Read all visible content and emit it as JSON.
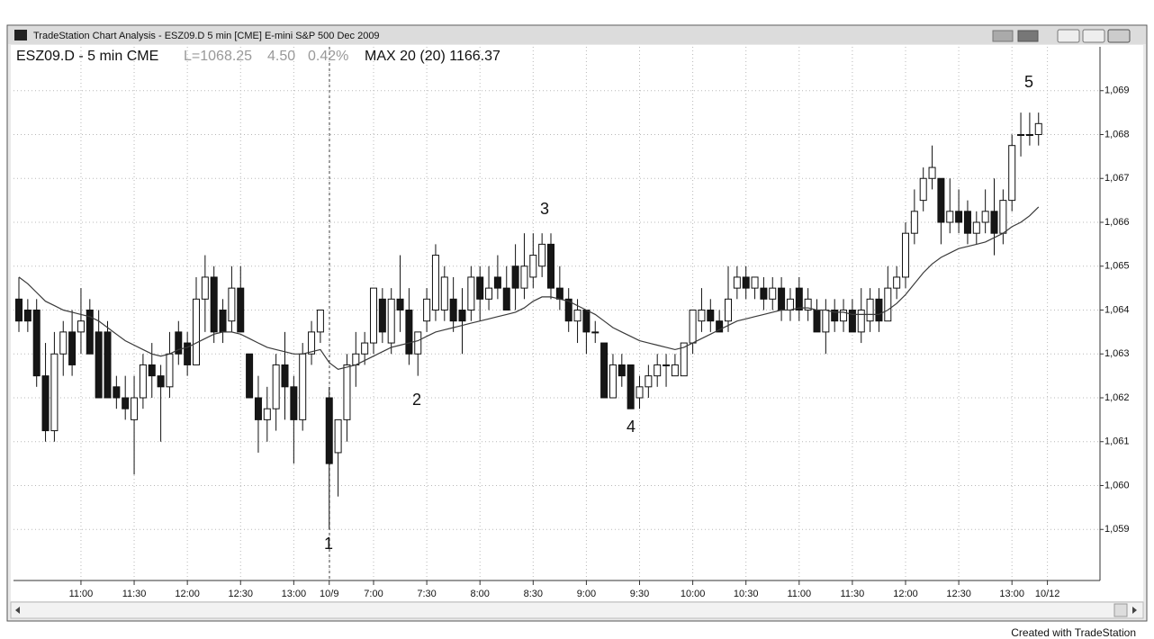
{
  "chart_data": {
    "type": "candlestick",
    "window_title": "TradeStation Chart Analysis - ESZ09.D 5 min [CME] E-mini S&P 500 Dec 2009",
    "symbol_label": "ESZ09.D - 5 min CME",
    "last_label": "L=1068.25",
    "change_label": "4.50",
    "pct_label": "0.42%",
    "indicator_label": "MAX 20 (20) 1166.37",
    "categories": [
      null,
      null,
      null,
      null,
      null,
      null,
      null,
      "11:00",
      null,
      null,
      null,
      null,
      null,
      "11:30",
      null,
      null,
      null,
      null,
      null,
      "12:00",
      null,
      null,
      null,
      null,
      null,
      "12:30",
      null,
      null,
      null,
      null,
      null,
      "13:00",
      null,
      null,
      null,
      "10/9",
      null,
      null,
      null,
      null,
      "7:00",
      null,
      null,
      null,
      null,
      null,
      "7:30",
      null,
      null,
      null,
      null,
      null,
      "8:00",
      null,
      null,
      null,
      null,
      null,
      "8:30",
      null,
      null,
      null,
      null,
      null,
      "9:00",
      null,
      null,
      null,
      null,
      null,
      "9:30",
      null,
      null,
      null,
      null,
      null,
      "10:00",
      null,
      null,
      null,
      null,
      null,
      "10:30",
      null,
      null,
      null,
      null,
      null,
      "11:00",
      null,
      null,
      null,
      null,
      null,
      "11:30",
      null,
      null,
      null,
      null,
      null,
      "12:00",
      null,
      null,
      null,
      null,
      null,
      "12:30",
      null,
      null,
      null,
      null,
      null,
      "13:00",
      null,
      null,
      null,
      "10/12"
    ],
    "open": [
      1064.25,
      1064,
      1064,
      1062.5,
      1061.25,
      1063,
      1063.5,
      1063.5,
      1064,
      1063.5,
      1063.5,
      1062.25,
      1062,
      1061.5,
      1062,
      1062.75,
      1062.5,
      1062.25,
      1063.5,
      1063.25,
      1062.75,
      1064.25,
      1064.75,
      1064,
      1063.75,
      1064.5,
      1063,
      1062,
      1061.5,
      1061.75,
      1062.75,
      1062.25,
      1061.5,
      1063,
      1063.5,
      1062,
      1060.75,
      1061.5,
      1062.75,
      1063,
      1063.25,
      1064.25,
      1063.25,
      1064.25,
      1064,
      1063,
      1063.75,
      1064,
      1064,
      1064.25,
      1064,
      1064,
      1064.75,
      1064.25,
      1064.75,
      1064.5,
      1065,
      1064.5,
      1064.75,
      1065,
      1065.5,
      1064.5,
      1064.25,
      1063.75,
      1064,
      1063.5,
      1063.25,
      1062,
      1062.75,
      1062.75,
      1062,
      1062.25,
      1062.5,
      1062.75,
      1062.5,
      1062.5,
      1063.25,
      1063.75,
      1064,
      1063.75,
      1063.75,
      1064.5,
      1064.75,
      1064.5,
      1064.5,
      1064.25,
      1064.5,
      1064,
      1064.5,
      1064,
      1064,
      1063.5,
      1064,
      1063.75,
      1064,
      1063.5,
      1063.75,
      1064.25,
      1063.75,
      1064.5,
      1064.75,
      1065.75,
      1066.5,
      1067,
      1067,
      1066,
      1066.25,
      1066.25,
      1065.75,
      1066,
      1066.25,
      1065.75,
      1066.5,
      1068,
      1068,
      1068,
      null
    ],
    "high": [
      1064.75,
      1064.25,
      1064.25,
      1063.25,
      1063.5,
      1063.75,
      1064,
      1064.5,
      1064.25,
      1064,
      1063.75,
      1062.5,
      1062.5,
      1062.5,
      1063,
      1063.25,
      1062.75,
      1063.5,
      1063.75,
      1063.5,
      1064.75,
      1065.25,
      1065,
      1064.25,
      1065,
      1065,
      1063,
      1062.5,
      1062.25,
      1063,
      1063.5,
      1062.5,
      1063.25,
      1063.75,
      1064,
      1062.25,
      1061.5,
      1063,
      1063.5,
      1063.5,
      1064.5,
      1064.5,
      1064.5,
      1065.25,
      1064.5,
      1063.5,
      1064.5,
      1065.5,
      1065,
      1064.75,
      1064.5,
      1065,
      1065,
      1065,
      1065.25,
      1065,
      1065.5,
      1065.75,
      1065.75,
      1065.75,
      1065.75,
      1065,
      1064.5,
      1064.25,
      1064,
      1063.75,
      1063.25,
      1063,
      1063,
      1062.75,
      1062.5,
      1062.75,
      1063,
      1063,
      1063,
      1063.25,
      1064,
      1064.5,
      1064.25,
      1064,
      1065,
      1065,
      1065,
      1064.75,
      1064.75,
      1064.75,
      1064.75,
      1064.5,
      1064.75,
      1064.5,
      1064.25,
      1064.25,
      1064.25,
      1064.25,
      1064.25,
      1064.5,
      1064.5,
      1064.5,
      1065,
      1065,
      1066,
      1066.75,
      1067.25,
      1067.75,
      1067,
      1067,
      1066.75,
      1066.5,
      1066.25,
      1066.75,
      1067,
      1066.75,
      1068,
      1068.5,
      1068.5,
      1068.5,
      null
    ],
    "low": [
      1063.5,
      1063.5,
      1062.25,
      1061,
      1061,
      1062.5,
      1062.5,
      1063,
      1063,
      1062,
      1062,
      1061.75,
      1061.5,
      1060.25,
      1061.75,
      1062,
      1061,
      1062,
      1062.75,
      1062.5,
      1062.75,
      1063.5,
      1063.25,
      1063.25,
      1063.5,
      1063.5,
      1062,
      1060.75,
      1061,
      1061.25,
      1061.5,
      1060.5,
      1061.25,
      1062.75,
      1063.25,
      1059,
      1059.75,
      1061,
      1062.25,
      1062.75,
      1063,
      1063.25,
      1063,
      1063.5,
      1062.75,
      1062.5,
      1063.5,
      1063.75,
      1063.75,
      1063.5,
      1063,
      1063.75,
      1063.75,
      1064,
      1064.25,
      1064,
      1064,
      1064.25,
      1064.5,
      1064.75,
      1064.25,
      1064,
      1063.5,
      1063.25,
      1063,
      1063.25,
      1062,
      1062,
      1062.25,
      1061.75,
      1061.75,
      1062,
      1062.25,
      1062.25,
      1062.5,
      1062.5,
      1063,
      1063.5,
      1063.5,
      1063.5,
      1063.5,
      1064.25,
      1064.25,
      1064.25,
      1064,
      1064,
      1063.75,
      1063.75,
      1063.75,
      1063.75,
      1063.5,
      1063,
      1063.5,
      1063.5,
      1063.5,
      1063.25,
      1063.5,
      1063.5,
      1063.75,
      1064.25,
      1064.5,
      1065.5,
      1066.25,
      1066.75,
      1065.5,
      1065.75,
      1065.75,
      1065.5,
      1065.5,
      1065.75,
      1065.25,
      1065.5,
      1066.25,
      1067.5,
      1067.75,
      1067.75,
      null
    ],
    "close": [
      1063.75,
      1063.75,
      1062.5,
      1061.25,
      1063,
      1063.5,
      1062.75,
      1063.75,
      1063,
      1062,
      1062,
      1062,
      1061.75,
      1062,
      1062.75,
      1062.5,
      1062.25,
      1063,
      1063,
      1062.75,
      1064.25,
      1064.75,
      1063.5,
      1063.5,
      1064.5,
      1063.5,
      1062,
      1061.5,
      1061.75,
      1062.75,
      1062.25,
      1061.5,
      1063,
      1063.5,
      1064,
      1060.5,
      1061.5,
      1062.75,
      1063,
      1063.25,
      1064.5,
      1063.5,
      1064.25,
      1064,
      1063,
      1063.5,
      1064.25,
      1065.25,
      1064.75,
      1063.75,
      1063.75,
      1064.75,
      1064.25,
      1064.5,
      1064.5,
      1064,
      1064.5,
      1065,
      1065.25,
      1065.5,
      1064.5,
      1064.25,
      1063.75,
      1064,
      1063.5,
      1063.5,
      1062,
      1062.75,
      1062.5,
      1061.75,
      1062.25,
      1062.5,
      1062.75,
      1062.75,
      1062.75,
      1063.25,
      1064,
      1064,
      1063.75,
      1063.5,
      1064.25,
      1064.75,
      1064.5,
      1064.75,
      1064.25,
      1064.5,
      1064,
      1064.25,
      1064,
      1064.25,
      1063.5,
      1064,
      1063.75,
      1064,
      1063.5,
      1064,
      1064.25,
      1063.75,
      1064.5,
      1064.75,
      1065.75,
      1066.25,
      1067,
      1067.25,
      1066,
      1066.25,
      1066,
      1065.75,
      1066,
      1066.25,
      1065.75,
      1066.5,
      1067.75,
      1068,
      1068,
      1068.25,
      null
    ],
    "ma_values": [
      1064.75,
      1064.6,
      1064.4,
      1064.2,
      1064.1,
      1064,
      1063.95,
      1063.9,
      1063.85,
      1063.75,
      1063.6,
      1063.45,
      1063.3,
      1063.2,
      1063.1,
      1063,
      1062.95,
      1063,
      1063.1,
      1063.15,
      1063.25,
      1063.35,
      1063.45,
      1063.5,
      1063.5,
      1063.45,
      1063.35,
      1063.25,
      1063.15,
      1063.1,
      1063.05,
      1063,
      1063,
      1063.05,
      1063.1,
      1062.8,
      1062.65,
      1062.7,
      1062.75,
      1062.85,
      1062.95,
      1063.05,
      1063.15,
      1063.2,
      1063.25,
      1063.3,
      1063.4,
      1063.5,
      1063.55,
      1063.6,
      1063.65,
      1063.7,
      1063.75,
      1063.8,
      1063.85,
      1063.9,
      1063.95,
      1064.05,
      1064.2,
      1064.3,
      1064.3,
      1064.25,
      1064.2,
      1064.1,
      1064,
      1063.9,
      1063.75,
      1063.6,
      1063.5,
      1063.4,
      1063.3,
      1063.25,
      1063.2,
      1063.15,
      1063.1,
      1063.15,
      1063.25,
      1063.35,
      1063.45,
      1063.55,
      1063.65,
      1063.75,
      1063.8,
      1063.85,
      1063.9,
      1063.95,
      1064,
      1064,
      1064.05,
      1064.05,
      1064,
      1064,
      1063.95,
      1063.95,
      1063.9,
      1063.9,
      1063.9,
      1063.9,
      1064,
      1064.15,
      1064.35,
      1064.6,
      1064.85,
      1065.05,
      1065.2,
      1065.3,
      1065.4,
      1065.45,
      1065.5,
      1065.55,
      1065.65,
      1065.75,
      1065.9,
      1066,
      1066.15,
      1066.35,
      null
    ],
    "up_color": "#ffffff",
    "down_color": "#161616",
    "ma_color": "#3a3a3a",
    "ylim": [
      1058,
      1070
    ],
    "yticks": [
      {
        "value": 1059,
        "label": "1,059"
      },
      {
        "value": 1060,
        "label": "1,060"
      },
      {
        "value": 1061,
        "label": "1,061"
      },
      {
        "value": 1062,
        "label": "1,062"
      },
      {
        "value": 1063,
        "label": "1,063"
      },
      {
        "value": 1064,
        "label": "1,064"
      },
      {
        "value": 1065,
        "label": "1,065"
      },
      {
        "value": 1066,
        "label": "1,066"
      },
      {
        "value": 1067,
        "label": "1,067"
      },
      {
        "value": 1068,
        "label": "1,068"
      },
      {
        "value": 1069,
        "label": "1,069"
      }
    ],
    "grid": true,
    "annotations": [
      "1",
      "2",
      "3",
      "4",
      "5"
    ]
  },
  "footer": "Created with TradeStation"
}
